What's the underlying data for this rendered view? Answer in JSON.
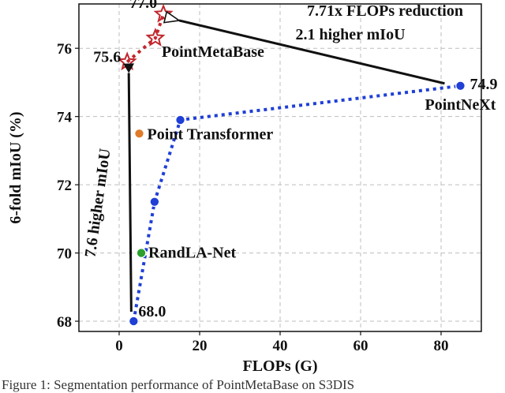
{
  "chart_data": {
    "type": "scatter",
    "xlabel": "FLOPs (G)",
    "ylabel": "6-fold mIoU (%)",
    "xlim": [
      -10,
      90
    ],
    "ylim": [
      67.7,
      77.3
    ],
    "xticks": [
      0,
      20,
      40,
      60,
      80
    ],
    "yticks": [
      68,
      70,
      72,
      74,
      76
    ],
    "grid": true,
    "series": [
      {
        "name": "PointMetaBase",
        "marker": "star",
        "color": "#c1272d",
        "line": "dotted",
        "points": [
          {
            "x": 2.0,
            "y": 75.6
          },
          {
            "x": 9.0,
            "y": 76.3
          },
          {
            "x": 11.0,
            "y": 77.0
          }
        ]
      },
      {
        "name": "PointNeXt",
        "marker": "circle",
        "color": "#1f3fd6",
        "line": "dotted",
        "points": [
          {
            "x": 3.6,
            "y": 68.0
          },
          {
            "x": 8.8,
            "y": 71.5
          },
          {
            "x": 15.2,
            "y": 73.9
          },
          {
            "x": 84.8,
            "y": 74.9
          }
        ]
      },
      {
        "name": "Point Transformer",
        "marker": "circle",
        "color": "#e07b2a",
        "line": "none",
        "points": [
          {
            "x": 5.0,
            "y": 73.5
          }
        ]
      },
      {
        "name": "RandLA-Net",
        "marker": "circle",
        "color": "#2ca02c",
        "line": "none",
        "points": [
          {
            "x": 5.5,
            "y": 70.0
          }
        ]
      }
    ],
    "point_labels": [
      {
        "id": "pmb-top",
        "text": "77.0",
        "x": 11.0,
        "y": 77.0
      },
      {
        "id": "pmb-first",
        "text": "75.6",
        "x": 2.0,
        "y": 75.6
      },
      {
        "id": "pmb-name",
        "text": "PointMetaBase",
        "x": 9.0,
        "y": 76.3
      },
      {
        "id": "pn-last",
        "text": "74.9",
        "x": 84.8,
        "y": 74.9
      },
      {
        "id": "pn-name",
        "text": "PointNeXt",
        "x": 84.8,
        "y": 74.9
      },
      {
        "id": "pn-first",
        "text": "68.0",
        "x": 3.6,
        "y": 68.0
      },
      {
        "id": "pt-name",
        "text": "Point Transformer",
        "x": 5.0,
        "y": 73.5
      },
      {
        "id": "rla-name",
        "text": "RandLA-Net",
        "x": 5.5,
        "y": 70.0
      }
    ],
    "annotations": [
      {
        "text": "7.71x FLOPs reduction",
        "line": 1
      },
      {
        "text": "2.1 higher mIoU",
        "line": 2
      },
      {
        "text": "7.6 higher mIoU",
        "orientation": "vertical"
      }
    ]
  },
  "caption": "Figure 1: Segmentation performance of PointMetaBase on S3DIS"
}
